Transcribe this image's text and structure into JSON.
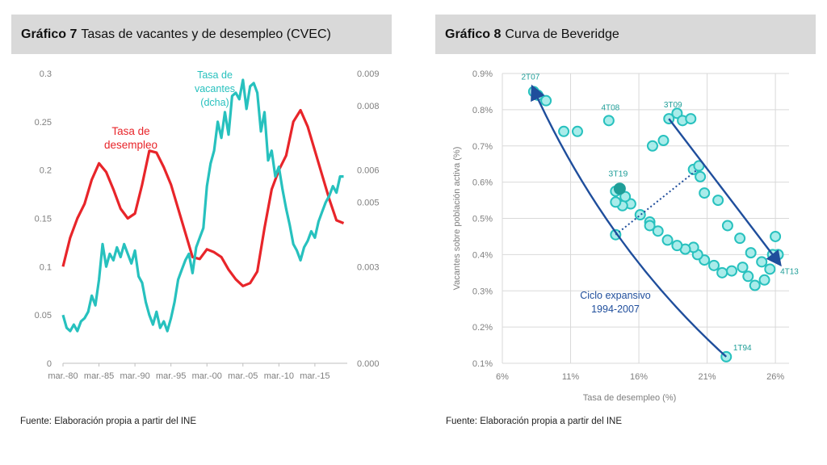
{
  "chart_data": [
    {
      "type": "line",
      "label": "Gráfico 7",
      "title": "Tasas de vacantes y de desempleo (CVEC)",
      "source": "Fuente: Elaboración propia a partir del INE",
      "x_tick_labels": [
        "mar.-80",
        "mar.-85",
        "mar.-90",
        "mar.-95",
        "mar.-00",
        "mar.-05",
        "mar.-10",
        "mar.-15"
      ],
      "x_tick_years": [
        1980,
        1985,
        1990,
        1995,
        2000,
        2005,
        2010,
        2015
      ],
      "x_range": [
        1980,
        2019.5
      ],
      "y_left": {
        "range": [
          0,
          0.3
        ],
        "ticks": [
          0,
          0.05,
          0.1,
          0.15,
          0.2,
          0.25,
          0.3
        ],
        "tick_labels": [
          "0",
          "0.05",
          "0.1",
          "0.15",
          "0.2",
          "0.25",
          "0.3"
        ]
      },
      "y_right": {
        "range": [
          0,
          0.009
        ],
        "ticks": [
          0,
          0.003,
          0.005,
          0.006,
          0.008,
          0.009
        ],
        "tick_labels": [
          "0.000",
          "0.003",
          "0.005",
          "0.006",
          "0.008",
          "0.009"
        ]
      },
      "grid": false,
      "series": [
        {
          "name_lines": [
            "Tasa de",
            "desempleo"
          ],
          "color": "#e8252a",
          "axis": "left",
          "x": [
            1980,
            1981,
            1982,
            1983,
            1984,
            1985,
            1986,
            1987,
            1988,
            1989,
            1990,
            1991,
            1992,
            1993,
            1994,
            1995,
            1996,
            1997,
            1998,
            1999,
            2000,
            2001,
            2002,
            2003,
            2004,
            2005,
            2006,
            2007,
            2008,
            2009,
            2010,
            2011,
            2012,
            2013,
            2014,
            2015,
            2016,
            2017,
            2018,
            2019
          ],
          "y": [
            0.1,
            0.13,
            0.15,
            0.165,
            0.19,
            0.207,
            0.198,
            0.18,
            0.16,
            0.15,
            0.155,
            0.185,
            0.22,
            0.218,
            0.203,
            0.185,
            0.16,
            0.135,
            0.11,
            0.108,
            0.118,
            0.115,
            0.11,
            0.097,
            0.087,
            0.08,
            0.083,
            0.095,
            0.14,
            0.18,
            0.2,
            0.215,
            0.25,
            0.262,
            0.245,
            0.22,
            0.195,
            0.17,
            0.148,
            0.145
          ]
        },
        {
          "name_lines": [
            "Tasa de",
            "vacantes",
            "(dcha)"
          ],
          "color": "#27c1be",
          "axis": "right",
          "x": [
            1980,
            1980.5,
            1981,
            1981.5,
            1982,
            1982.5,
            1983,
            1983.5,
            1984,
            1984.5,
            1985,
            1985.5,
            1986,
            1986.5,
            1987,
            1987.5,
            1988,
            1988.5,
            1989,
            1989.5,
            1990,
            1990.5,
            1991,
            1991.5,
            1992,
            1992.5,
            1993,
            1993.5,
            1994,
            1994.5,
            1995,
            1995.5,
            1996,
            1996.5,
            1997,
            1997.5,
            1998,
            1998.5,
            1999,
            1999.5,
            2000,
            2000.5,
            2001,
            2001.5,
            2002,
            2002.5,
            2003,
            2003.5,
            2004,
            2004.5,
            2005,
            2005.5,
            2006,
            2006.5,
            2007,
            2007.5,
            2008,
            2008.5,
            2009,
            2009.5,
            2010,
            2010.5,
            2011,
            2011.5,
            2012,
            2012.5,
            2013,
            2013.5,
            2014,
            2014.5,
            2015,
            2015.5,
            2016,
            2016.5,
            2017,
            2017.5,
            2018,
            2018.5,
            2019
          ],
          "y": [
            0.0015,
            0.0011,
            0.001,
            0.0012,
            0.001,
            0.0013,
            0.0014,
            0.0016,
            0.0021,
            0.0018,
            0.0026,
            0.0037,
            0.003,
            0.0034,
            0.0032,
            0.0036,
            0.0033,
            0.0037,
            0.0034,
            0.0031,
            0.0035,
            0.0027,
            0.0025,
            0.0019,
            0.0015,
            0.0012,
            0.0016,
            0.0011,
            0.0013,
            0.001,
            0.0014,
            0.0019,
            0.0026,
            0.0029,
            0.0032,
            0.0034,
            0.0028,
            0.0036,
            0.0039,
            0.0042,
            0.0055,
            0.0062,
            0.0066,
            0.0075,
            0.007,
            0.0078,
            0.0071,
            0.0083,
            0.0084,
            0.0082,
            0.0088,
            0.0079,
            0.0086,
            0.0087,
            0.0084,
            0.0072,
            0.0078,
            0.0063,
            0.0066,
            0.0058,
            0.0061,
            0.0054,
            0.0048,
            0.0043,
            0.0037,
            0.0035,
            0.0032,
            0.0036,
            0.0038,
            0.0041,
            0.0039,
            0.0044,
            0.0047,
            0.005,
            0.0052,
            0.0055,
            0.0053,
            0.0058,
            0.0058
          ]
        }
      ]
    },
    {
      "type": "scatter",
      "label": "Gráfico 8",
      "title": "Curva de Beveridge",
      "source": "Fuente: Elaboración propia a partir del INE",
      "xlabel": "Tasa de desempleo (%)",
      "ylabel": "Vacantes sobre población activa (%)",
      "x_ticks": [
        6,
        11,
        16,
        21,
        26
      ],
      "x_tick_labels": [
        "6%",
        "11%",
        "16%",
        "21%",
        "26%"
      ],
      "x_range": [
        6,
        27
      ],
      "y_ticks": [
        0.1,
        0.2,
        0.3,
        0.4,
        0.5,
        0.6,
        0.7,
        0.8,
        0.9
      ],
      "y_tick_labels": [
        "0.1%",
        "0.2%",
        "0.3%",
        "0.4%",
        "0.5%",
        "0.6%",
        "0.7%",
        "0.8%",
        "0.9%"
      ],
      "y_range": [
        0.1,
        0.9
      ],
      "grid": true,
      "point_color": "#27c1be",
      "points": [
        {
          "x": 8.3,
          "y": 0.85
        },
        {
          "x": 8.6,
          "y": 0.84
        },
        {
          "x": 9.2,
          "y": 0.825
        },
        {
          "x": 10.5,
          "y": 0.74
        },
        {
          "x": 11.5,
          "y": 0.74
        },
        {
          "x": 13.8,
          "y": 0.77
        },
        {
          "x": 17.0,
          "y": 0.7
        },
        {
          "x": 17.8,
          "y": 0.715
        },
        {
          "x": 18.2,
          "y": 0.775
        },
        {
          "x": 18.8,
          "y": 0.79
        },
        {
          "x": 19.2,
          "y": 0.77
        },
        {
          "x": 19.8,
          "y": 0.775
        },
        {
          "x": 20.0,
          "y": 0.635
        },
        {
          "x": 20.4,
          "y": 0.645
        },
        {
          "x": 20.5,
          "y": 0.615
        },
        {
          "x": 20.8,
          "y": 0.57
        },
        {
          "x": 21.8,
          "y": 0.55
        },
        {
          "x": 22.5,
          "y": 0.48
        },
        {
          "x": 23.4,
          "y": 0.445
        },
        {
          "x": 24.2,
          "y": 0.405
        },
        {
          "x": 25.0,
          "y": 0.38
        },
        {
          "x": 25.6,
          "y": 0.36
        },
        {
          "x": 26.0,
          "y": 0.45
        },
        {
          "x": 26.2,
          "y": 0.4
        },
        {
          "x": 25.8,
          "y": 0.4
        },
        {
          "x": 25.2,
          "y": 0.33
        },
        {
          "x": 24.5,
          "y": 0.315
        },
        {
          "x": 24.0,
          "y": 0.34
        },
        {
          "x": 23.6,
          "y": 0.365
        },
        {
          "x": 22.8,
          "y": 0.355
        },
        {
          "x": 22.1,
          "y": 0.35
        },
        {
          "x": 21.5,
          "y": 0.37
        },
        {
          "x": 20.8,
          "y": 0.385
        },
        {
          "x": 20.3,
          "y": 0.4
        },
        {
          "x": 20.0,
          "y": 0.42
        },
        {
          "x": 19.4,
          "y": 0.415
        },
        {
          "x": 18.8,
          "y": 0.425
        },
        {
          "x": 18.1,
          "y": 0.44
        },
        {
          "x": 17.4,
          "y": 0.465
        },
        {
          "x": 16.8,
          "y": 0.49
        },
        {
          "x": 16.1,
          "y": 0.51
        },
        {
          "x": 15.4,
          "y": 0.54
        },
        {
          "x": 14.8,
          "y": 0.535
        },
        {
          "x": 14.3,
          "y": 0.545
        },
        {
          "x": 14.3,
          "y": 0.575
        },
        {
          "x": 14.6,
          "y": 0.58
        },
        {
          "x": 15.0,
          "y": 0.56
        },
        {
          "x": 16.8,
          "y": 0.48
        },
        {
          "x": 14.3,
          "y": 0.455
        },
        {
          "x": 22.4,
          "y": 0.118
        }
      ],
      "highlight": {
        "label": "3T19",
        "x": 14.6,
        "y": 0.582,
        "color": "#1f9e98"
      },
      "labels": [
        {
          "text": "2T07",
          "x": 8.3,
          "y": 0.85
        },
        {
          "text": "4T08",
          "x": 13.8,
          "y": 0.77
        },
        {
          "text": "3T09",
          "x": 18.2,
          "y": 0.775
        },
        {
          "text": "4T13",
          "x": 26.2,
          "y": 0.4
        },
        {
          "text": "1T94",
          "x": 22.4,
          "y": 0.118
        }
      ],
      "annotation": {
        "lines": [
          "Ciclo expansivo",
          "1994-2007"
        ],
        "color": "#1f4e9c"
      },
      "arrows": [
        {
          "from": {
            "x": 22.4,
            "y": 0.118
          },
          "to": {
            "x": 8.3,
            "y": 0.855
          },
          "curved": true,
          "color": "#1f4e9c"
        },
        {
          "from": {
            "x": 18.2,
            "y": 0.775
          },
          "to": {
            "x": 26.2,
            "y": 0.38
          },
          "curved": false,
          "color": "#1f4e9c"
        }
      ],
      "dotted_line": {
        "from": {
          "x": 14.3,
          "y": 0.455
        },
        "to": {
          "x": 20.3,
          "y": 0.635
        },
        "color": "#1f4e9c"
      }
    }
  ]
}
